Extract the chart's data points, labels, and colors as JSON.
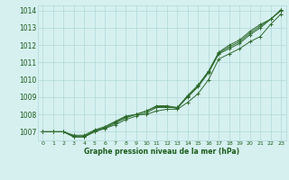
{
  "xlabel": "Graphe pression niveau de la mer (hPa)",
  "x": [
    0,
    1,
    2,
    3,
    4,
    5,
    6,
    7,
    8,
    9,
    10,
    11,
    12,
    13,
    14,
    15,
    16,
    17,
    18,
    19,
    20,
    21,
    22,
    23
  ],
  "series": [
    [
      1007.0,
      1007.0,
      1007.0,
      1006.8,
      1006.8,
      1007.1,
      1007.3,
      1007.6,
      1007.9,
      1008.0,
      1008.0,
      1008.2,
      1008.3,
      1008.3,
      1008.7,
      1009.2,
      1010.0,
      1011.2,
      1011.5,
      1011.8,
      1012.2,
      1012.5,
      1013.2,
      1013.8
    ],
    [
      1007.0,
      1007.0,
      1007.0,
      1006.7,
      1006.7,
      1007.0,
      1007.2,
      1007.4,
      1007.7,
      1007.9,
      1008.1,
      1008.4,
      1008.4,
      1008.4,
      1009.0,
      1009.6,
      1010.4,
      1011.5,
      1011.8,
      1012.1,
      1012.6,
      1013.0,
      1013.5,
      1014.0
    ],
    [
      1007.0,
      1007.0,
      1007.0,
      1006.7,
      1006.7,
      1007.0,
      1007.2,
      1007.5,
      1007.8,
      1008.0,
      1008.2,
      1008.5,
      1008.5,
      1008.4,
      1009.1,
      1009.7,
      1010.5,
      1011.6,
      1012.0,
      1012.3,
      1012.8,
      1013.2,
      1013.5,
      1014.05
    ],
    [
      1007.0,
      1007.0,
      1007.0,
      1006.75,
      1006.75,
      1007.05,
      1007.25,
      1007.55,
      1007.85,
      1008.0,
      1008.2,
      1008.45,
      1008.45,
      1008.35,
      1009.05,
      1009.65,
      1010.45,
      1011.55,
      1011.9,
      1012.2,
      1012.7,
      1013.1,
      1013.5,
      1014.02
    ]
  ],
  "line_color": "#2d6a2d",
  "marker": "+",
  "bg_color": "#d6f0f0",
  "grid_color": "#b0d8d8",
  "text_color": "#1a5c1a",
  "ylim": [
    1006.5,
    1014.3
  ],
  "yticks": [
    1007,
    1008,
    1009,
    1010,
    1011,
    1012,
    1013,
    1014
  ],
  "xticks": [
    0,
    1,
    2,
    3,
    4,
    5,
    6,
    7,
    8,
    9,
    10,
    11,
    12,
    13,
    14,
    15,
    16,
    17,
    18,
    19,
    20,
    21,
    22,
    23
  ]
}
